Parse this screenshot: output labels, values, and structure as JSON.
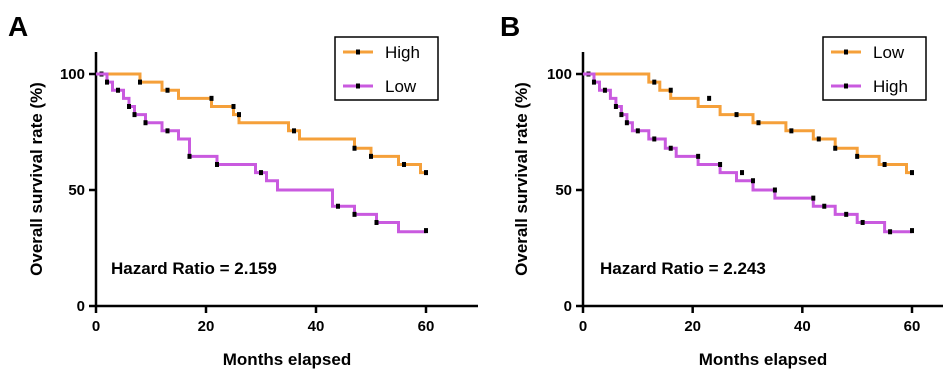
{
  "chart_data": [
    {
      "panel": "A",
      "type": "line",
      "xlabel": "Months elapsed",
      "ylabel": "Overall survival rate (%)",
      "xlim": [
        0,
        65
      ],
      "ylim": [
        0,
        110
      ],
      "x_ticks": [
        "0",
        "20",
        "40",
        "60"
      ],
      "y_ticks": [
        "0",
        "50",
        "100"
      ],
      "annotation": "Hazard Ratio = 2.159",
      "legend": {
        "placement": "top-right"
      },
      "series": [
        {
          "name": "High",
          "color": "#F5A03A",
          "steps": [
            [
              0,
              100
            ],
            [
              8,
              100
            ],
            [
              8,
              96.5
            ],
            [
              12,
              96.5
            ],
            [
              12,
              93
            ],
            [
              15,
              93
            ],
            [
              15,
              89.5
            ],
            [
              21,
              89.5
            ],
            [
              21,
              86
            ],
            [
              25,
              86
            ],
            [
              25,
              82.5
            ],
            [
              26,
              82.5
            ],
            [
              26,
              79
            ],
            [
              35,
              79
            ],
            [
              35,
              75.5
            ],
            [
              37,
              75.5
            ],
            [
              37,
              72
            ],
            [
              47,
              72
            ],
            [
              47,
              68
            ],
            [
              50,
              68
            ],
            [
              50,
              64.5
            ],
            [
              55,
              64.5
            ],
            [
              55,
              61
            ],
            [
              59,
              61
            ],
            [
              59,
              57.5
            ],
            [
              60,
              57.5
            ]
          ],
          "censor": [
            [
              1,
              100
            ],
            [
              8,
              96.5
            ],
            [
              13,
              93
            ],
            [
              21,
              89.5
            ],
            [
              25,
              86
            ],
            [
              26,
              82.5
            ],
            [
              36,
              75.5
            ],
            [
              47,
              68
            ],
            [
              50,
              64.5
            ],
            [
              56,
              61
            ],
            [
              60,
              57.5
            ]
          ]
        },
        {
          "name": "Low",
          "color": "#C95ADF",
          "steps": [
            [
              0,
              100
            ],
            [
              2,
              100
            ],
            [
              2,
              96.5
            ],
            [
              3,
              96.5
            ],
            [
              3,
              93
            ],
            [
              5,
              93
            ],
            [
              5,
              89.5
            ],
            [
              6,
              89.5
            ],
            [
              6,
              86
            ],
            [
              7,
              86
            ],
            [
              7,
              82.5
            ],
            [
              9,
              82.5
            ],
            [
              9,
              79
            ],
            [
              12,
              79
            ],
            [
              12,
              75.5
            ],
            [
              15,
              75.5
            ],
            [
              15,
              72
            ],
            [
              17,
              72
            ],
            [
              17,
              64.5
            ],
            [
              22,
              64.5
            ],
            [
              22,
              61
            ],
            [
              29,
              61
            ],
            [
              29,
              57.5
            ],
            [
              31,
              57.5
            ],
            [
              31,
              54
            ],
            [
              33,
              54
            ],
            [
              33,
              50
            ],
            [
              43,
              50
            ],
            [
              43,
              43
            ],
            [
              47,
              43
            ],
            [
              47,
              39.5
            ],
            [
              51,
              39.5
            ],
            [
              51,
              36
            ],
            [
              55,
              36
            ],
            [
              55,
              32
            ],
            [
              60,
              32
            ]
          ],
          "censor": [
            [
              2,
              96.5
            ],
            [
              4,
              93
            ],
            [
              6,
              86
            ],
            [
              7,
              82.5
            ],
            [
              9,
              79
            ],
            [
              13,
              75.5
            ],
            [
              17,
              64.5
            ],
            [
              22,
              61
            ],
            [
              30,
              57.5
            ],
            [
              44,
              43
            ],
            [
              47,
              39.5
            ],
            [
              51,
              36
            ],
            [
              60,
              32.5
            ]
          ]
        }
      ]
    },
    {
      "panel": "B",
      "type": "line",
      "xlabel": "Months elapsed",
      "ylabel": "Overall survival rate (%)",
      "xlim": [
        0,
        65
      ],
      "ylim": [
        0,
        110
      ],
      "x_ticks": [
        "0",
        "20",
        "40",
        "60"
      ],
      "y_ticks": [
        "0",
        "50",
        "100"
      ],
      "annotation": "Hazard Ratio = 2.243",
      "legend": {
        "placement": "top-right"
      },
      "series": [
        {
          "name": "Low",
          "color": "#F5A03A",
          "steps": [
            [
              0,
              100
            ],
            [
              12,
              100
            ],
            [
              12,
              96.5
            ],
            [
              14,
              96.5
            ],
            [
              14,
              93
            ],
            [
              16,
              93
            ],
            [
              16,
              89.5
            ],
            [
              21,
              89.5
            ],
            [
              21,
              86
            ],
            [
              25,
              86
            ],
            [
              25,
              82.5
            ],
            [
              31,
              82.5
            ],
            [
              31,
              79
            ],
            [
              37,
              79
            ],
            [
              37,
              75.5
            ],
            [
              42,
              75.5
            ],
            [
              42,
              72
            ],
            [
              46,
              72
            ],
            [
              46,
              68
            ],
            [
              50,
              68
            ],
            [
              50,
              64.5
            ],
            [
              54,
              64.5
            ],
            [
              54,
              61
            ],
            [
              59,
              61
            ],
            [
              59,
              57.5
            ],
            [
              60,
              57.5
            ]
          ],
          "censor": [
            [
              1,
              100
            ],
            [
              13,
              96.5
            ],
            [
              16,
              93
            ],
            [
              23,
              89.5
            ],
            [
              28,
              82.5
            ],
            [
              32,
              79
            ],
            [
              38,
              75.5
            ],
            [
              43,
              72
            ],
            [
              46,
              68
            ],
            [
              50,
              64.5
            ],
            [
              55,
              61
            ],
            [
              60,
              57.5
            ]
          ]
        },
        {
          "name": "High",
          "color": "#C95ADF",
          "steps": [
            [
              0,
              100
            ],
            [
              2,
              100
            ],
            [
              2,
              96.5
            ],
            [
              3,
              96.5
            ],
            [
              3,
              93
            ],
            [
              5,
              93
            ],
            [
              5,
              89.5
            ],
            [
              6,
              89.5
            ],
            [
              6,
              86
            ],
            [
              7,
              86
            ],
            [
              7,
              82.5
            ],
            [
              8,
              82.5
            ],
            [
              8,
              79
            ],
            [
              9,
              79
            ],
            [
              9,
              75.5
            ],
            [
              12,
              75.5
            ],
            [
              12,
              72
            ],
            [
              15,
              72
            ],
            [
              15,
              68
            ],
            [
              17,
              68
            ],
            [
              17,
              64.5
            ],
            [
              21,
              64.5
            ],
            [
              21,
              61
            ],
            [
              25,
              61
            ],
            [
              25,
              57.5
            ],
            [
              28,
              57.5
            ],
            [
              28,
              54
            ],
            [
              31,
              54
            ],
            [
              31,
              50
            ],
            [
              35,
              50
            ],
            [
              35,
              46.5
            ],
            [
              42,
              46.5
            ],
            [
              42,
              43
            ],
            [
              46,
              43
            ],
            [
              46,
              39.5
            ],
            [
              50,
              39.5
            ],
            [
              50,
              36
            ],
            [
              55,
              36
            ],
            [
              55,
              32
            ],
            [
              60,
              32
            ]
          ],
          "censor": [
            [
              2,
              96.5
            ],
            [
              4,
              93
            ],
            [
              6,
              86
            ],
            [
              7,
              82.5
            ],
            [
              8,
              79
            ],
            [
              10,
              75.5
            ],
            [
              13,
              72
            ],
            [
              16,
              68
            ],
            [
              21,
              64.5
            ],
            [
              25,
              61
            ],
            [
              29,
              57.5
            ],
            [
              31,
              54
            ],
            [
              35,
              50
            ],
            [
              42,
              46.5
            ],
            [
              44,
              43
            ],
            [
              48,
              39.5
            ],
            [
              51,
              36
            ],
            [
              56,
              32
            ],
            [
              60,
              32.5
            ]
          ]
        }
      ]
    }
  ]
}
